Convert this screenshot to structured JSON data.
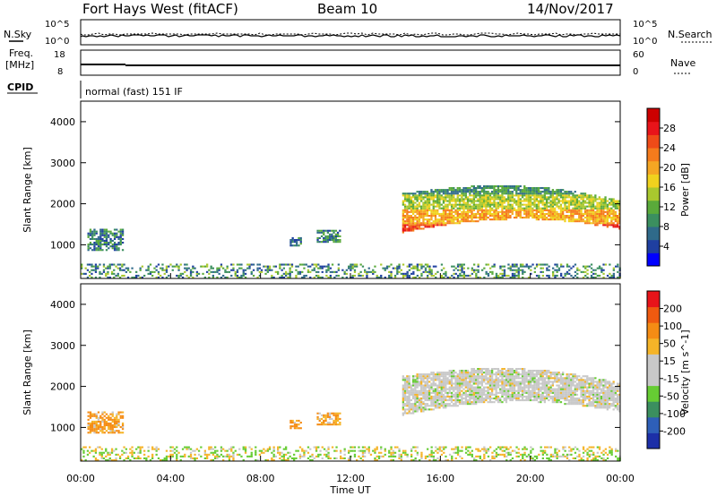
{
  "header": {
    "radar": "Fort Hays West (fitACF)",
    "beam": "Beam 10",
    "date": "14/Nov/2017"
  },
  "strips": {
    "nsky": {
      "label": "N.Sky",
      "ticks": [
        "10^5",
        "10^0"
      ],
      "right_label": "N.Search",
      "right_ticks": [
        "10^5",
        "10^0"
      ]
    },
    "freq": {
      "label_line1": "Freq.",
      "label_line2": "[MHz]",
      "ticks": [
        "18",
        "8"
      ],
      "right_label": "Nave",
      "right_ticks": [
        "60",
        "0"
      ]
    },
    "cpid": {
      "label": "CPID",
      "value": "normal (fast) 151 IF"
    }
  },
  "chart_data": [
    {
      "type": "heatmap",
      "name": "Power",
      "ylabel": "Slant Range [km]",
      "y_ticks": [
        "4000",
        "3000",
        "2000",
        "1000"
      ],
      "ylim": [
        180,
        4500
      ],
      "xlim": [
        0,
        24
      ],
      "colorbar": {
        "label": "Power [dB]",
        "ticks": [
          "28",
          "24",
          "20",
          "16",
          "12",
          "8",
          "4"
        ],
        "colors": [
          "#0000ff",
          "#1f3fa0",
          "#2f6a8a",
          "#3b8f5f",
          "#5aaa3a",
          "#a9c82e",
          "#f0d21e",
          "#f5a623",
          "#f57b1c",
          "#ef4b18",
          "#e8141a",
          "#cc0000"
        ]
      },
      "echo_regions": [
        {
          "t0": 0.3,
          "t1": 1.9,
          "r0": 850,
          "r1": 1350,
          "level": "low"
        },
        {
          "t0": 9.3,
          "t1": 9.8,
          "r0": 960,
          "r1": 1180,
          "level": "low"
        },
        {
          "t0": 10.5,
          "t1": 11.5,
          "r0": 1050,
          "r1": 1350,
          "level": "low"
        },
        {
          "t0": 14.3,
          "t1": 24.0,
          "r0": 1100,
          "r1": 2600,
          "level": "high"
        },
        {
          "t0": 0.0,
          "t1": 24.0,
          "r0": 180,
          "r1": 500,
          "level": "ground"
        }
      ]
    },
    {
      "type": "heatmap",
      "name": "Velocity",
      "ylabel": "Slant Range [km]",
      "y_ticks": [
        "4000",
        "3000",
        "2000",
        "1000"
      ],
      "ylim": [
        180,
        4500
      ],
      "xlim": [
        0,
        24
      ],
      "x_ticks": [
        "00:00",
        "04:00",
        "08:00",
        "12:00",
        "16:00",
        "20:00",
        "00:00"
      ],
      "xlabel": "Time UT",
      "colorbar": {
        "label": "Velocity [m s^-1]",
        "ticks": [
          "200",
          "100",
          "50",
          "15",
          "-15",
          "-50",
          "-100",
          "-200"
        ],
        "colors": [
          "#1c2fa8",
          "#2e5fb8",
          "#3b8f5f",
          "#66cc33",
          "#c8c8c8",
          "#c8c8c8",
          "#f5b428",
          "#f58c14",
          "#ef5a10",
          "#e8141a"
        ]
      },
      "echo_regions": [
        {
          "t0": 0.3,
          "t1": 1.9,
          "r0": 850,
          "r1": 1350,
          "level": "neg"
        },
        {
          "t0": 9.3,
          "t1": 9.8,
          "r0": 960,
          "r1": 1180,
          "level": "neg"
        },
        {
          "t0": 10.5,
          "t1": 11.5,
          "r0": 1050,
          "r1": 1350,
          "level": "neg"
        },
        {
          "t0": 14.3,
          "t1": 24.0,
          "r0": 1100,
          "r1": 2600,
          "level": "zero"
        },
        {
          "t0": 0.0,
          "t1": 24.0,
          "r0": 180,
          "r1": 500,
          "level": "ground"
        }
      ]
    }
  ]
}
